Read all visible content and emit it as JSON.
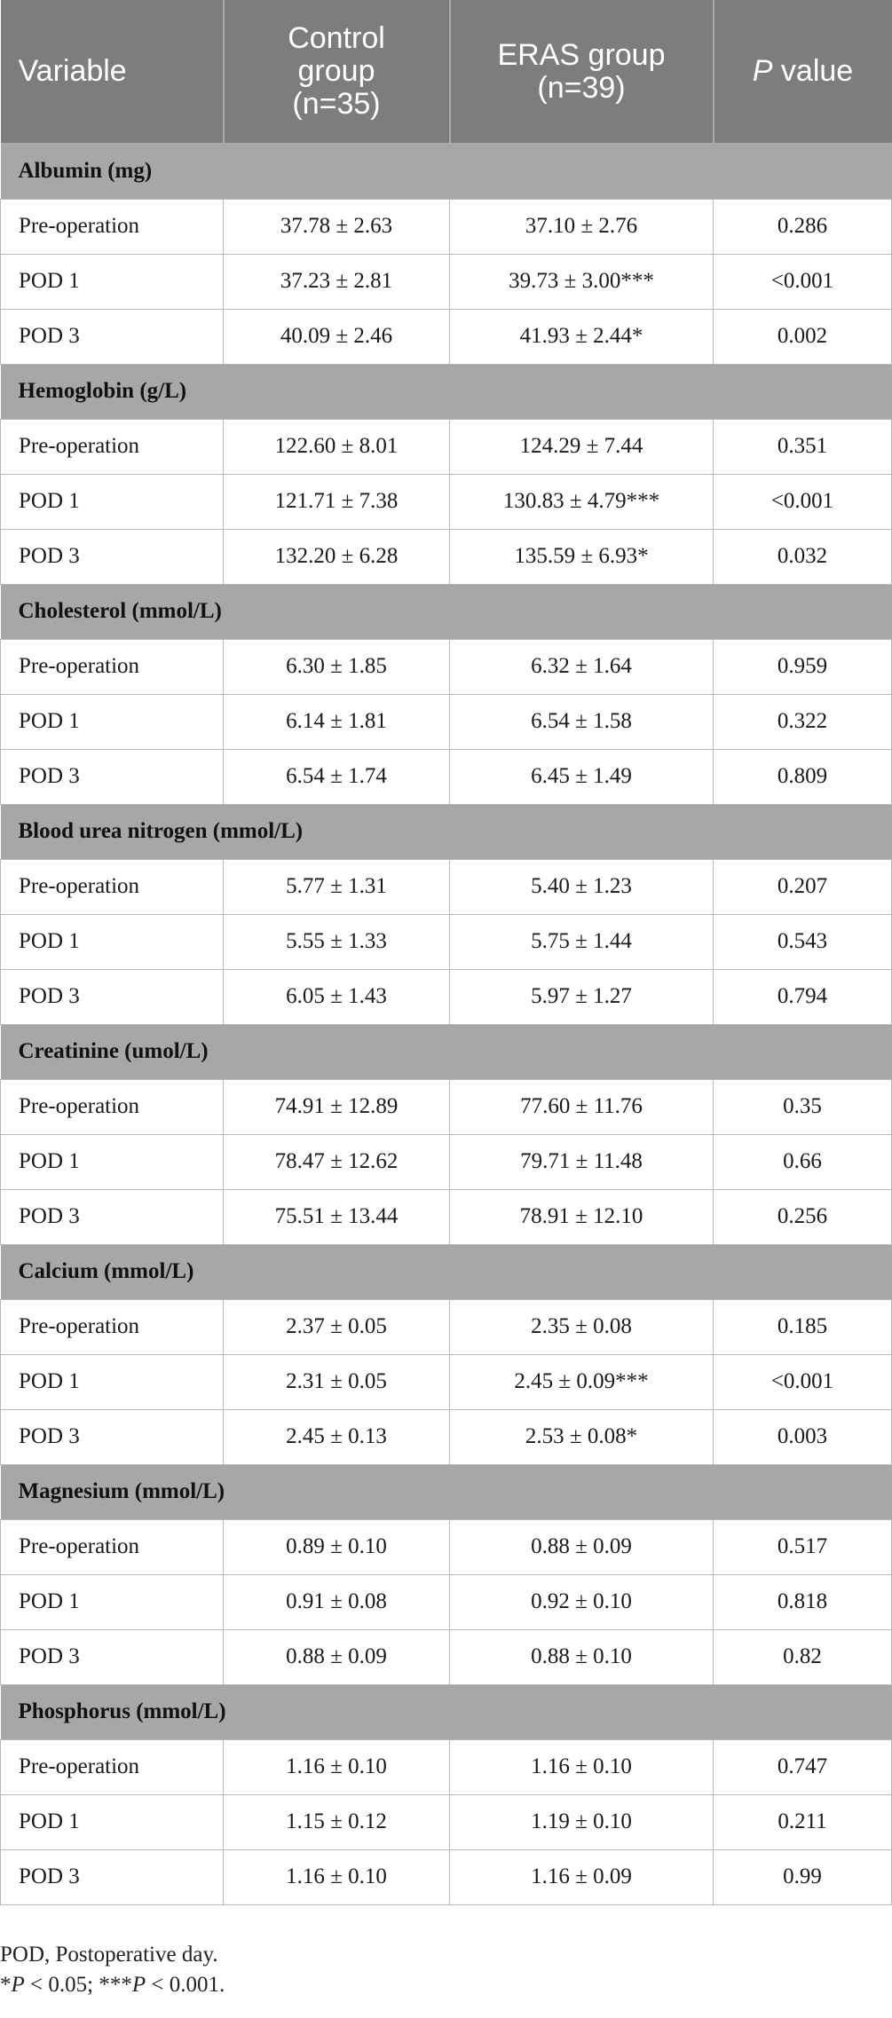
{
  "header": {
    "col1": "Variable",
    "col2_line1": "Control",
    "col2_line2": "group",
    "col2_line3": "(n=35)",
    "col3_line1": "ERAS group",
    "col3_line2": "(n=39)",
    "col4_italic": "P",
    "col4_rest": " value"
  },
  "sections": [
    {
      "title": "Albumin (mg)",
      "rows": [
        {
          "label": "Pre-operation",
          "control": "37.78 ± 2.63",
          "eras": "37.10 ± 2.76",
          "p": "0.286"
        },
        {
          "label": "POD 1",
          "control": "37.23 ± 2.81",
          "eras": "39.73 ± 3.00***",
          "p": "<0.001"
        },
        {
          "label": "POD 3",
          "control": "40.09 ± 2.46",
          "eras": "41.93 ± 2.44*",
          "p": "0.002"
        }
      ]
    },
    {
      "title": "Hemoglobin (g/L)",
      "rows": [
        {
          "label": "Pre-operation",
          "control": "122.60 ± 8.01",
          "eras": "124.29 ± 7.44",
          "p": "0.351"
        },
        {
          "label": "POD 1",
          "control": "121.71 ± 7.38",
          "eras": "130.83 ± 4.79***",
          "p": "<0.001"
        },
        {
          "label": "POD 3",
          "control": "132.20 ± 6.28",
          "eras": "135.59 ± 6.93*",
          "p": "0.032"
        }
      ]
    },
    {
      "title": "Cholesterol (mmol/L)",
      "rows": [
        {
          "label": "Pre-operation",
          "control": "6.30 ± 1.85",
          "eras": "6.32 ± 1.64",
          "p": "0.959"
        },
        {
          "label": "POD 1",
          "control": "6.14 ± 1.81",
          "eras": "6.54 ± 1.58",
          "p": "0.322"
        },
        {
          "label": "POD 3",
          "control": "6.54 ± 1.74",
          "eras": "6.45 ± 1.49",
          "p": "0.809"
        }
      ]
    },
    {
      "title": "Blood urea nitrogen (mmol/L)",
      "rows": [
        {
          "label": "Pre-operation",
          "control": "5.77 ± 1.31",
          "eras": "5.40 ± 1.23",
          "p": "0.207"
        },
        {
          "label": "POD 1",
          "control": "5.55 ± 1.33",
          "eras": "5.75 ± 1.44",
          "p": "0.543"
        },
        {
          "label": "POD 3",
          "control": "6.05 ± 1.43",
          "eras": "5.97 ± 1.27",
          "p": "0.794"
        }
      ]
    },
    {
      "title": "Creatinine (umol/L)",
      "rows": [
        {
          "label": "Pre-operation",
          "control": "74.91 ± 12.89",
          "eras": "77.60 ± 11.76",
          "p": "0.35"
        },
        {
          "label": "POD 1",
          "control": "78.47 ± 12.62",
          "eras": "79.71 ± 11.48",
          "p": "0.66"
        },
        {
          "label": "POD 3",
          "control": "75.51 ± 13.44",
          "eras": "78.91 ± 12.10",
          "p": "0.256"
        }
      ]
    },
    {
      "title": "Calcium (mmol/L)",
      "rows": [
        {
          "label": "Pre-operation",
          "control": "2.37 ± 0.05",
          "eras": "2.35 ± 0.08",
          "p": "0.185"
        },
        {
          "label": "POD 1",
          "control": "2.31 ± 0.05",
          "eras": "2.45 ± 0.09***",
          "p": "<0.001"
        },
        {
          "label": "POD 3",
          "control": "2.45 ± 0.13",
          "eras": "2.53 ± 0.08*",
          "p": "0.003"
        }
      ]
    },
    {
      "title": "Magnesium (mmol/L)",
      "rows": [
        {
          "label": "Pre-operation",
          "control": "0.89 ± 0.10",
          "eras": "0.88 ± 0.09",
          "p": "0.517"
        },
        {
          "label": "POD 1",
          "control": "0.91 ± 0.08",
          "eras": "0.92 ± 0.10",
          "p": "0.818"
        },
        {
          "label": "POD 3",
          "control": "0.88 ± 0.09",
          "eras": "0.88 ± 0.10",
          "p": "0.82"
        }
      ]
    },
    {
      "title": "Phosphorus (mmol/L)",
      "rows": [
        {
          "label": "Pre-operation",
          "control": "1.16 ± 0.10",
          "eras": "1.16 ± 0.10",
          "p": "0.747"
        },
        {
          "label": "POD 1",
          "control": "1.15 ± 0.12",
          "eras": "1.19 ± 0.10",
          "p": "0.211"
        },
        {
          "label": "POD 3",
          "control": "1.16 ± 0.10",
          "eras": "1.16 ± 0.09",
          "p": "0.99"
        }
      ]
    }
  ],
  "footnotes": {
    "abbrev": "POD, Postoperative day.",
    "sig_star1": "*",
    "sig_p1": "P",
    "sig_text1": " < 0.05; ",
    "sig_star2": "***",
    "sig_p2": "P",
    "sig_text2": " < 0.001."
  }
}
